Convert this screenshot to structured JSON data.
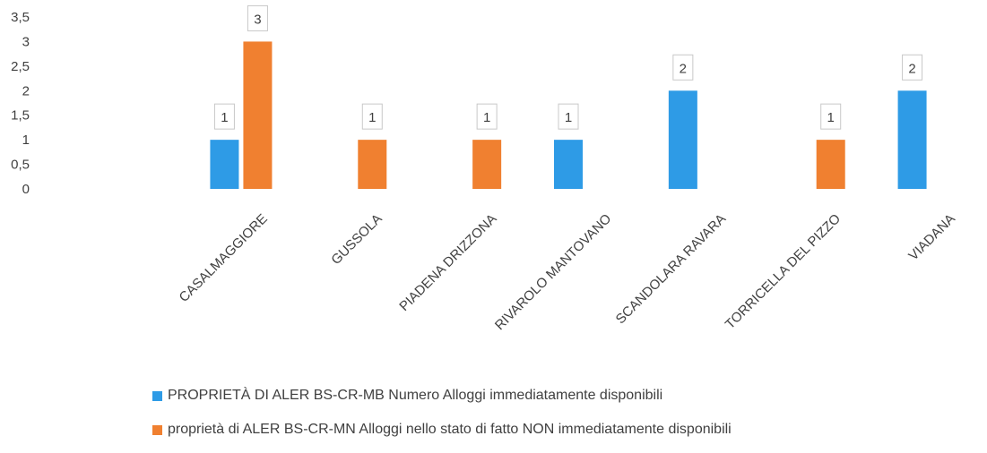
{
  "chart_data": {
    "type": "bar",
    "categories": [
      "CASALMAGGIORE",
      "GUSSOLA",
      "PIADENA DRIZZONA",
      "RIVAROLO MANTOVANO",
      "SCANDOLARA RAVARA",
      "TORRICELLA DEL PIZZO",
      "VIADANA"
    ],
    "series": [
      {
        "name": "PROPRIETÀ DI ALER BS-CR-MB  Numero Alloggi immediatamente disponibili",
        "color": "#2E9BE6",
        "values": [
          1,
          null,
          null,
          1,
          2,
          null,
          2
        ]
      },
      {
        "name": "proprietà di ALER BS-CR-MN Alloggi nello stato di fatto NON immediatamente disponibili",
        "color": "#F08030",
        "values": [
          3,
          1,
          1,
          null,
          null,
          1,
          null
        ]
      }
    ],
    "yticks": [
      "0",
      "0,5",
      "1",
      "1,5",
      "2",
      "2,5",
      "3",
      "3,5"
    ],
    "ylim": [
      0,
      3.5
    ],
    "grid": false,
    "legend_position": "bottom",
    "title": "",
    "xlabel": "",
    "ylabel": ""
  }
}
